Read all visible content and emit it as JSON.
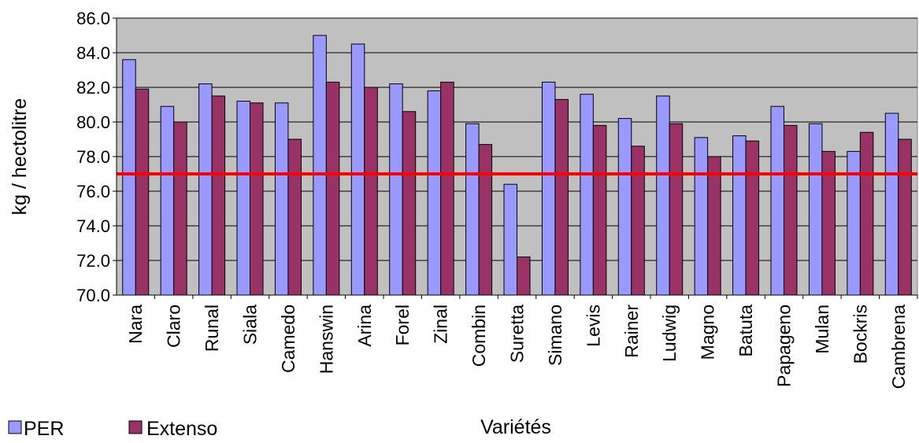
{
  "chart_data": {
    "type": "bar",
    "title": "",
    "xlabel": "Variétés",
    "ylabel": "kg /  hectolitre",
    "ylim": [
      70.0,
      86.0
    ],
    "yticks": [
      "70.0",
      "72.0",
      "74.0",
      "76.0",
      "78.0",
      "80.0",
      "82.0",
      "84.0",
      "86.0"
    ],
    "grid": "horizontal",
    "legend_position": "bottom-left",
    "categories": [
      "Nara",
      "Claro",
      "Runal",
      "Siala",
      "Camedo",
      "Hanswin",
      "Arina",
      "Forel",
      "Zinal",
      "Combin",
      "Suretta",
      "Simano",
      "Levis",
      "Rainer",
      "Ludwig",
      "Magno",
      "Batuta",
      "Papageno",
      "Mulan",
      "Bockris",
      "Cambrena"
    ],
    "series": [
      {
        "name": "PER",
        "color": "#9999ff",
        "values": [
          83.6,
          80.9,
          82.2,
          81.2,
          81.1,
          85.0,
          84.5,
          82.2,
          81.8,
          79.9,
          76.4,
          82.3,
          81.6,
          80.2,
          81.5,
          79.1,
          79.2,
          80.9,
          79.9,
          78.3,
          80.5
        ]
      },
      {
        "name": "Extenso",
        "color": "#993366",
        "values": [
          81.9,
          80.0,
          81.5,
          81.1,
          79.0,
          82.3,
          82.0,
          80.6,
          82.3,
          78.7,
          72.2,
          81.3,
          79.8,
          78.6,
          79.9,
          78.0,
          78.9,
          79.8,
          78.3,
          79.4,
          79.0
        ]
      }
    ],
    "reference_line": {
      "value": 77.0,
      "color": "#ff0000"
    },
    "plot_background": "#c0c0c0"
  }
}
